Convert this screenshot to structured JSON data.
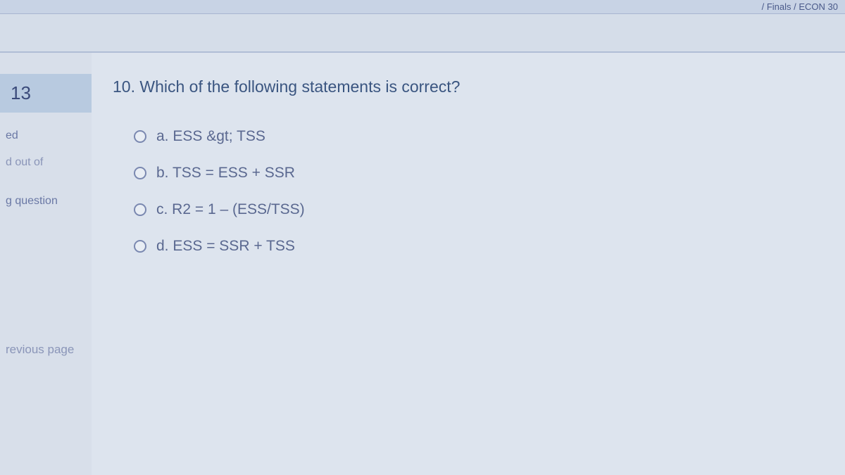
{
  "breadcrumb": {
    "text": "/ Finals / ECON 30"
  },
  "sidebar": {
    "question_number": "13",
    "status_items": [
      "ed",
      "d out of"
    ],
    "flag_label": "g question",
    "previous_page_label": "revious page"
  },
  "question": {
    "prompt": "10. Which of the following statements is correct?",
    "options": [
      {
        "label": "a. ESS &gt; TSS"
      },
      {
        "label": "b. TSS = ESS + SSR"
      },
      {
        "label": "c. R2 = 1 – (ESS/TSS)"
      },
      {
        "label": "d. ESS = SSR + TSS"
      }
    ]
  },
  "colors": {
    "background": "#cdd8e8",
    "sidebar_bg": "#d8dfea",
    "main_bg": "#dde4ee",
    "question_box_bg": "#b8cae0",
    "text_primary": "#3a5580",
    "text_secondary": "#5a6890",
    "text_faded": "#8a95b8",
    "radio_border": "#7a88b0"
  }
}
